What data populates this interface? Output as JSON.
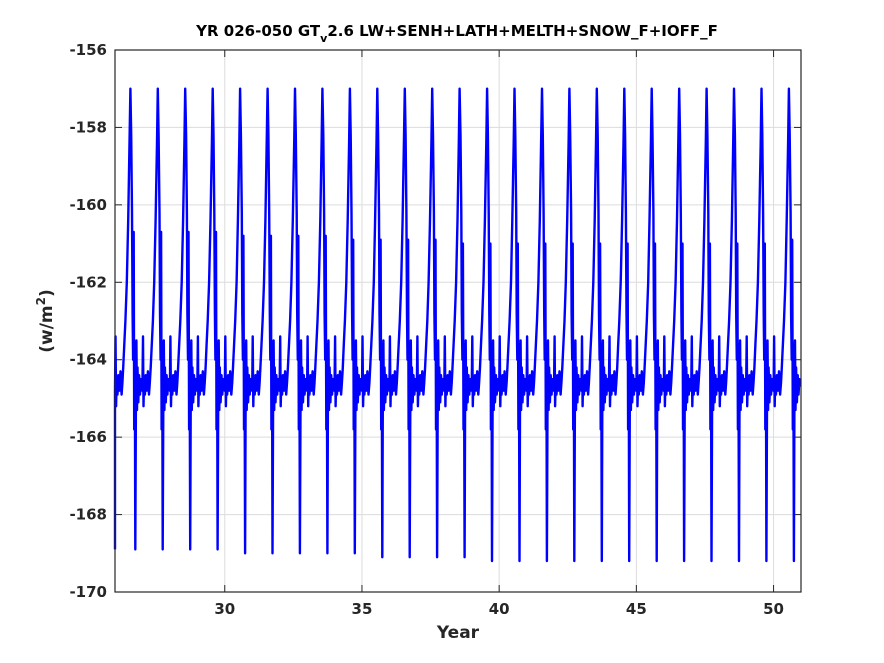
{
  "chart_data": {
    "type": "line",
    "title_parts": {
      "pre": "YR 026-050 GT",
      "sub": "v",
      "post": "2.6 LW+SENH+LATH+MELTH+SNOW_F+IOFF_F"
    },
    "xlabel": "Year",
    "ylabel_parts": {
      "pre": "(w/m",
      "sup": "2",
      "post": ")"
    },
    "xlim": [
      26,
      51
    ],
    "ylim": [
      -170,
      -156
    ],
    "xticks": [
      30,
      35,
      40,
      45,
      50
    ],
    "yticks": [
      -170,
      -168,
      -166,
      -164,
      -162,
      -160,
      -158,
      -156
    ],
    "grid": true,
    "line_color": "#0000ff",
    "series": [
      {
        "x_start": 26,
        "x_end": 51,
        "cycle_years": 1,
        "baseline": -164.7,
        "peaks": [
          -157.0,
          -157.0,
          -157.0,
          -157.0,
          -157.0,
          -157.0,
          -157.0,
          -157.0,
          -157.0,
          -157.0,
          -157.0,
          -157.0,
          -157.0,
          -157.0,
          -157.0,
          -157.0,
          -157.0,
          -157.0,
          -157.0,
          -157.0,
          -157.0,
          -157.0,
          -157.0,
          -157.0,
          -157.0
        ],
        "secondary_peaks": [
          -160.7,
          -160.7,
          -160.7,
          -160.7,
          -160.8,
          -160.8,
          -160.8,
          -160.8,
          -160.9,
          -160.9,
          -160.9,
          -160.9,
          -161.0,
          -161.0,
          -161.0,
          -161.0,
          -161.0,
          -161.0,
          -161.0,
          -161.0,
          -161.0,
          -161.0,
          -161.0,
          -161.0,
          -160.9
        ],
        "troughs": [
          -168.9,
          -168.9,
          -168.9,
          -168.9,
          -169.0,
          -169.0,
          -169.0,
          -169.0,
          -169.0,
          -169.1,
          -169.1,
          -169.1,
          -169.1,
          -169.2,
          -169.2,
          -169.2,
          -169.2,
          -169.2,
          -169.2,
          -169.2,
          -169.2,
          -169.2,
          -169.2,
          -169.2,
          -169.2
        ]
      }
    ]
  }
}
